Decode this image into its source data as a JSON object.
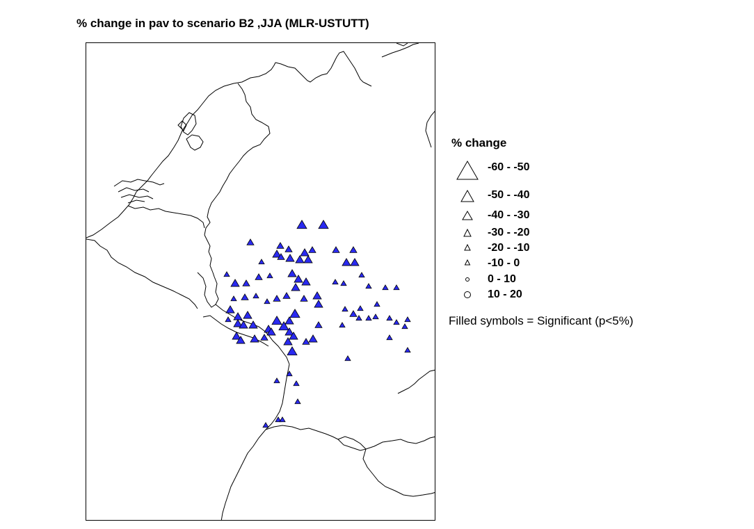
{
  "map": {
    "title": "% change in pav to scenario B2 ,JJA (MLR-USTUTT)"
  },
  "legend": {
    "title": "% change",
    "items": [
      {
        "label": "-60 - -50",
        "symbol": "triangle"
      },
      {
        "label": "-50 - -40",
        "symbol": "triangle"
      },
      {
        "label": "-40 - -30",
        "symbol": "triangle"
      },
      {
        "label": "-30 - -20",
        "symbol": "triangle"
      },
      {
        "label": "-20 - -10",
        "symbol": "triangle"
      },
      {
        "label": "-10 - 0",
        "symbol": "triangle"
      },
      {
        "label": "0 - 10",
        "symbol": "circle"
      },
      {
        "label": "10 - 20",
        "symbol": "circle"
      }
    ],
    "note": "Filled symbols = Significant (p<5%)"
  },
  "colors": {
    "significant_fill": "#2a2af0",
    "outline": "#000000",
    "border_line": "#000000"
  }
}
